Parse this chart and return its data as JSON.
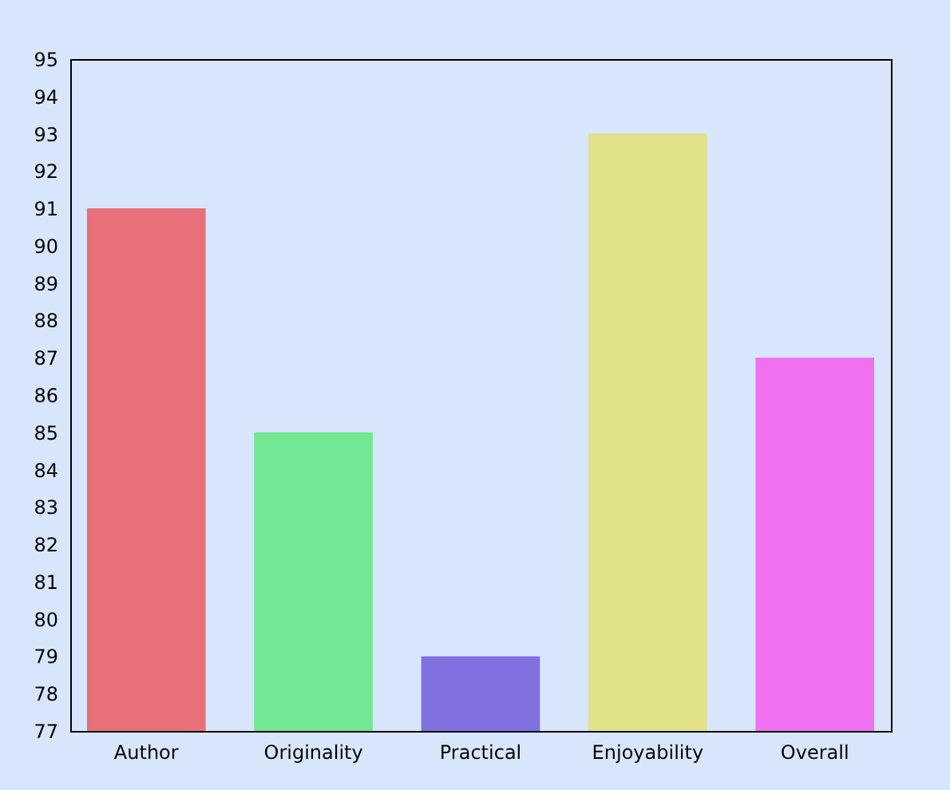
{
  "chart_data": {
    "type": "bar",
    "categories": [
      "Author",
      "Originality",
      "Practical",
      "Enjoyability",
      "Overall"
    ],
    "values": [
      91,
      85,
      79,
      93,
      87
    ],
    "colors": [
      "#e8707a",
      "#72e892",
      "#8070e0",
      "#e2e28a",
      "#f070f0"
    ],
    "ylim": [
      77,
      95
    ],
    "yticks": [
      77,
      78,
      79,
      80,
      81,
      82,
      83,
      84,
      85,
      86,
      87,
      88,
      89,
      90,
      91,
      92,
      93,
      94,
      95
    ]
  }
}
